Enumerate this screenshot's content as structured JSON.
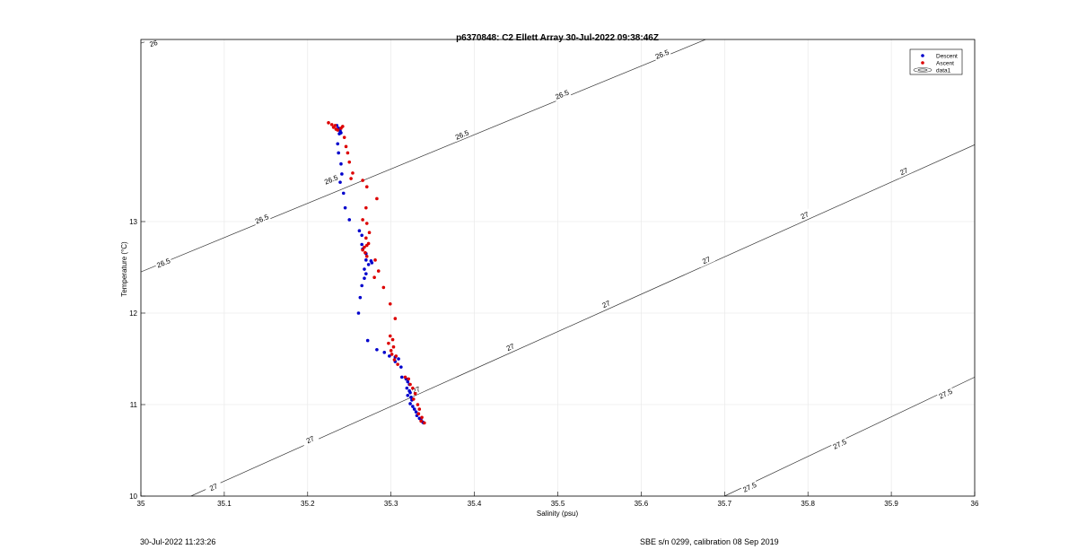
{
  "chart_data": {
    "type": "scatter",
    "title": "p6370848: C2 Ellett Array 30-Jul-2022 09:38:46Z",
    "xlabel": "Salinity (psu)",
    "ylabel": "Temperature (°C)",
    "xlim": [
      35,
      36
    ],
    "ylim": [
      10,
      14.99
    ],
    "grid": true,
    "legend_position": "top-right",
    "x_ticks": [
      "35",
      "35.1",
      "35.2",
      "35.3",
      "35.4",
      "35.5",
      "35.6",
      "35.7",
      "35.8",
      "35.9",
      "36"
    ],
    "y_ticks": [
      "10",
      "11",
      "12",
      "13"
    ],
    "legend": [
      {
        "label": "Descent",
        "color": "#0000cc",
        "marker": "dot"
      },
      {
        "label": "Ascent",
        "color": "#dd0000",
        "marker": "dot"
      },
      {
        "label": "data1",
        "color": "#000000",
        "marker": "contour"
      }
    ],
    "series": [
      {
        "name": "Descent",
        "color": "#0000cc",
        "points": [
          [
            35.235,
            14.05
          ],
          [
            35.237,
            14.02
          ],
          [
            35.239,
            13.99
          ],
          [
            35.24,
            13.97
          ],
          [
            35.238,
            13.96
          ],
          [
            35.236,
            13.85
          ],
          [
            35.237,
            13.75
          ],
          [
            35.24,
            13.63
          ],
          [
            35.241,
            13.52
          ],
          [
            35.239,
            13.43
          ],
          [
            35.243,
            13.31
          ],
          [
            35.245,
            13.15
          ],
          [
            35.25,
            13.02
          ],
          [
            35.262,
            12.9
          ],
          [
            35.265,
            12.85
          ],
          [
            35.265,
            12.75
          ],
          [
            35.266,
            12.7
          ],
          [
            35.27,
            12.65
          ],
          [
            35.27,
            12.58
          ],
          [
            35.276,
            12.57
          ],
          [
            35.277,
            12.55
          ],
          [
            35.273,
            12.53
          ],
          [
            35.268,
            12.48
          ],
          [
            35.27,
            12.43
          ],
          [
            35.268,
            12.38
          ],
          [
            35.265,
            12.3
          ],
          [
            35.263,
            12.17
          ],
          [
            35.261,
            12.0
          ],
          [
            35.272,
            11.7
          ],
          [
            35.283,
            11.6
          ],
          [
            35.292,
            11.57
          ],
          [
            35.298,
            11.53
          ],
          [
            35.305,
            11.52
          ],
          [
            35.309,
            11.5
          ],
          [
            35.305,
            11.47
          ],
          [
            35.312,
            11.41
          ],
          [
            35.313,
            11.3
          ],
          [
            35.318,
            11.28
          ],
          [
            35.32,
            11.25
          ],
          [
            35.322,
            11.22
          ],
          [
            35.319,
            11.18
          ],
          [
            35.322,
            11.15
          ],
          [
            35.323,
            11.13
          ],
          [
            35.32,
            11.1
          ],
          [
            35.324,
            11.08
          ],
          [
            35.325,
            11.05
          ],
          [
            35.323,
            11.01
          ],
          [
            35.326,
            10.98
          ],
          [
            35.328,
            10.95
          ],
          [
            35.33,
            10.92
          ],
          [
            35.331,
            10.88
          ],
          [
            35.334,
            10.85
          ],
          [
            35.336,
            10.83
          ],
          [
            35.338,
            10.81
          ],
          [
            35.339,
            10.8
          ]
        ]
      },
      {
        "name": "Ascent",
        "color": "#dd0000",
        "points": [
          [
            35.225,
            14.08
          ],
          [
            35.229,
            14.06
          ],
          [
            35.233,
            14.05
          ],
          [
            35.231,
            14.03
          ],
          [
            35.234,
            14.01
          ],
          [
            35.236,
            14.0
          ],
          [
            35.24,
            14.02
          ],
          [
            35.242,
            14.04
          ],
          [
            35.244,
            13.92
          ],
          [
            35.246,
            13.82
          ],
          [
            35.248,
            13.75
          ],
          [
            35.25,
            13.65
          ],
          [
            35.254,
            13.53
          ],
          [
            35.252,
            13.47
          ],
          [
            35.266,
            13.45
          ],
          [
            35.271,
            13.38
          ],
          [
            35.283,
            13.25
          ],
          [
            35.27,
            13.15
          ],
          [
            35.266,
            13.02
          ],
          [
            35.271,
            12.98
          ],
          [
            35.274,
            12.88
          ],
          [
            35.27,
            12.82
          ],
          [
            35.273,
            12.76
          ],
          [
            35.271,
            12.74
          ],
          [
            35.268,
            12.72
          ],
          [
            35.266,
            12.69
          ],
          [
            35.269,
            12.66
          ],
          [
            35.271,
            12.62
          ],
          [
            35.281,
            12.58
          ],
          [
            35.285,
            12.46
          ],
          [
            35.28,
            12.39
          ],
          [
            35.291,
            12.28
          ],
          [
            35.299,
            12.1
          ],
          [
            35.305,
            11.94
          ],
          [
            35.299,
            11.75
          ],
          [
            35.302,
            11.71
          ],
          [
            35.297,
            11.67
          ],
          [
            35.303,
            11.63
          ],
          [
            35.3,
            11.59
          ],
          [
            35.301,
            11.55
          ],
          [
            35.306,
            11.53
          ],
          [
            35.304,
            11.49
          ],
          [
            35.308,
            11.44
          ],
          [
            35.317,
            11.3
          ],
          [
            35.321,
            11.28
          ],
          [
            35.323,
            11.22
          ],
          [
            35.326,
            11.18
          ],
          [
            35.329,
            11.12
          ],
          [
            35.327,
            11.06
          ],
          [
            35.332,
            11.0
          ],
          [
            35.334,
            10.95
          ],
          [
            35.333,
            10.9
          ],
          [
            35.337,
            10.86
          ],
          [
            35.336,
            10.82
          ],
          [
            35.34,
            10.8
          ]
        ]
      }
    ],
    "contours": [
      {
        "label": "26",
        "points": [
          [
            35.0,
            14.95
          ],
          [
            35.035,
            15.05
          ]
        ],
        "label_positions": [
          [
            35.015,
            14.95
          ]
        ]
      },
      {
        "label": "26.5",
        "points": [
          [
            35.0,
            12.45
          ],
          [
            35.68,
            15.0
          ]
        ],
        "label_positions": [
          [
            35.027,
            12.55
          ],
          [
            35.145,
            13.03
          ],
          [
            35.228,
            13.46
          ],
          [
            35.385,
            13.95
          ],
          [
            35.505,
            14.39
          ],
          [
            35.625,
            14.83
          ]
        ]
      },
      {
        "label": "27",
        "points": [
          [
            35.06,
            10.0
          ],
          [
            36.0,
            13.84
          ]
        ],
        "label_positions": [
          [
            35.087,
            10.1
          ],
          [
            35.203,
            10.62
          ],
          [
            35.33,
            11.16
          ],
          [
            35.443,
            11.63
          ],
          [
            35.558,
            12.1
          ],
          [
            35.678,
            12.58
          ],
          [
            35.796,
            13.07
          ],
          [
            35.915,
            13.55
          ]
        ]
      },
      {
        "label": "27.5",
        "points": [
          [
            35.7,
            10.0
          ],
          [
            36.0,
            11.3
          ]
        ],
        "label_positions": [
          [
            35.73,
            10.1
          ],
          [
            35.838,
            10.57
          ],
          [
            35.965,
            11.12
          ]
        ]
      }
    ]
  },
  "footer": {
    "left": "30-Jul-2022 11:23:26",
    "right": "SBE s/n 0299, calibration 08 Sep 2019"
  }
}
